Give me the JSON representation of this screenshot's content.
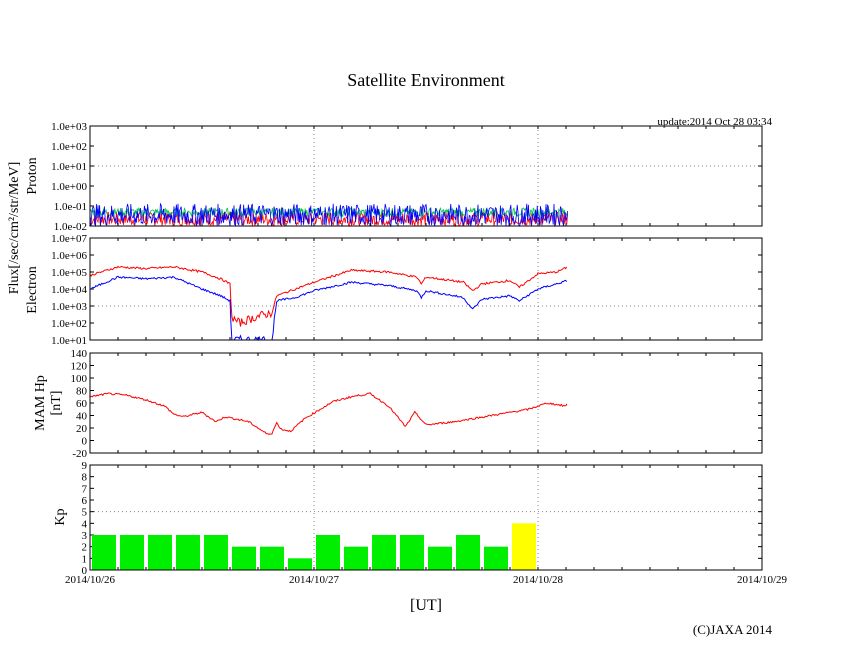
{
  "title": "Satellite Environment",
  "update": "update:2014 Oct 28 03:34",
  "copyright": "(C)JAXA 2014",
  "flux_label": "Flux[/sec/cm²/str/MeV]",
  "chart_data": [
    {
      "type": "line",
      "name": "Proton",
      "ylabel": "Proton",
      "yscale": "log",
      "ylim": [
        0.01,
        1000.0
      ],
      "yticks": [
        "1.0e-02",
        "1.0e-01",
        "1.0e+00",
        "1.0e+01",
        "1.0e+02",
        "1.0e+03"
      ],
      "grid_y": 10.0,
      "series": [
        {
          "name": "proton-red",
          "color": "#ff0000",
          "range": [
            0.01,
            0.05
          ]
        },
        {
          "name": "proton-green",
          "color": "#00c040",
          "range": [
            0.03,
            0.08
          ]
        },
        {
          "name": "proton-blue",
          "color": "#0000ff",
          "range": [
            0.01,
            0.13
          ]
        }
      ],
      "x_end_hours": 51.2
    },
    {
      "type": "line",
      "name": "Electron",
      "ylabel": "Electron",
      "yscale": "log",
      "ylim": [
        10.0,
        10000000.0
      ],
      "yticks": [
        "1.0e+01",
        "1.0e+02",
        "1.0e+03",
        "1.0e+04",
        "1.0e+05",
        "1.0e+06",
        "1.0e+07"
      ],
      "grid_y": 1000.0,
      "x_hours": [
        0,
        3,
        6,
        9,
        12,
        14,
        15,
        15.2,
        16,
        18,
        19.5,
        20,
        22,
        24,
        28,
        32,
        35,
        35.5,
        36,
        40,
        41,
        42,
        45,
        46,
        48,
        50,
        51.2
      ],
      "series": [
        {
          "name": "electron-red",
          "color": "#ff0000",
          "log10": [
            4.8,
            5.3,
            5.2,
            5.3,
            5.0,
            4.6,
            4.3,
            2.3,
            2.0,
            2.4,
            2.6,
            3.6,
            4.0,
            4.4,
            5.1,
            5.0,
            4.7,
            4.3,
            4.7,
            4.4,
            3.9,
            4.3,
            4.5,
            4.1,
            4.9,
            5.0,
            5.3
          ]
        },
        {
          "name": "electron-blue",
          "color": "#0000ff",
          "log10": [
            4.0,
            4.7,
            4.6,
            4.7,
            4.0,
            3.6,
            3.3,
            1.0,
            1.0,
            1.0,
            1.0,
            3.3,
            3.5,
            3.9,
            4.4,
            4.2,
            3.9,
            3.5,
            3.9,
            3.5,
            2.8,
            3.4,
            3.6,
            3.3,
            4.0,
            4.3,
            4.5
          ]
        }
      ]
    },
    {
      "type": "line",
      "name": "MAM Hp",
      "ylabel": "MAM Hp",
      "ylabel2": "[nT]",
      "ylim": [
        -20,
        140
      ],
      "yticks": [
        "-20",
        "0",
        "20",
        "40",
        "60",
        "80",
        "100",
        "120",
        "140"
      ],
      "x_hours": [
        0,
        2,
        4,
        6,
        8,
        9,
        10,
        12,
        13.5,
        14.5,
        17,
        18.5,
        19,
        19.5,
        20,
        20.5,
        21.5,
        23,
        26,
        28,
        30,
        32,
        33.8,
        34.8,
        36,
        39,
        45,
        47,
        49,
        51,
        51.2
      ],
      "series": [
        {
          "name": "mam-hp",
          "color": "#ff0000",
          "values": [
            70,
            75,
            72,
            65,
            55,
            42,
            38,
            45,
            30,
            38,
            30,
            15,
            10,
            12,
            28,
            18,
            15,
            35,
            62,
            70,
            75,
            55,
            22,
            45,
            25,
            30,
            45,
            50,
            60,
            55,
            62
          ]
        }
      ]
    },
    {
      "type": "bar",
      "name": "Kp",
      "ylabel": "Kp",
      "ylim": [
        0,
        9
      ],
      "yticks": [
        "0",
        "1",
        "2",
        "3",
        "4",
        "5",
        "6",
        "7",
        "8",
        "9"
      ],
      "grid_y": 5,
      "bar_hours": 3,
      "values": [
        3,
        3,
        3,
        3,
        3,
        2,
        2,
        1,
        3,
        2,
        3,
        3,
        2,
        3,
        2,
        4
      ],
      "colors": {
        "normal": "#00ee00",
        "latest": "#ffff00"
      }
    }
  ],
  "xaxis": {
    "ticks": [
      "2014/10/26",
      "2014/10/27",
      "2014/10/28",
      "2014/10/29"
    ],
    "label": "[UT]",
    "range_hours": [
      0,
      72
    ]
  }
}
